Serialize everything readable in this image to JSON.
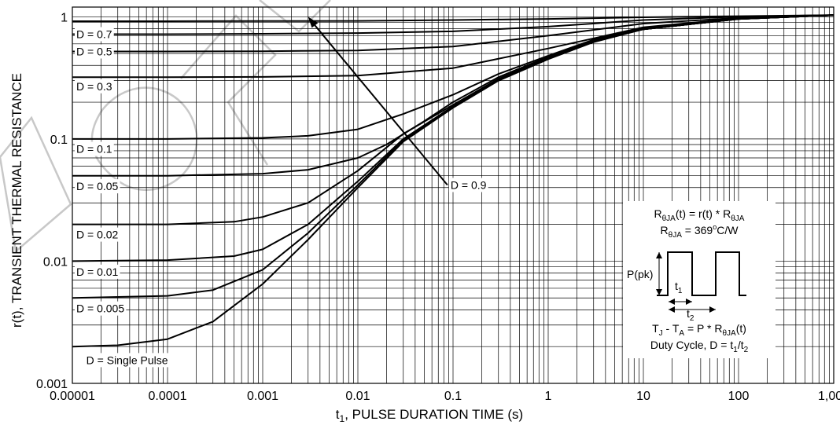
{
  "chart_data": {
    "type": "line",
    "title": "",
    "xlabel_main": "t",
    "xlabel_sub": "1",
    "xlabel_rest": ", PULSE DURATION TIME (s)",
    "ylabel": "r(t), TRANSIENT THERMAL RESISTANCE",
    "xscale": "log",
    "yscale": "log",
    "xlim": [
      1e-05,
      1000
    ],
    "ylim": [
      0.001,
      1.2
    ],
    "grid": true,
    "x_ticks": [
      {
        "v": 1e-05,
        "label": "0.00001"
      },
      {
        "v": 0.0001,
        "label": "0.0001"
      },
      {
        "v": 0.001,
        "label": "0.001"
      },
      {
        "v": 0.01,
        "label": "0.01"
      },
      {
        "v": 0.1,
        "label": "0.1"
      },
      {
        "v": 1,
        "label": "1"
      },
      {
        "v": 10,
        "label": "10"
      },
      {
        "v": 100,
        "label": "100"
      },
      {
        "v": 1000,
        "label": "1,000"
      }
    ],
    "y_ticks": [
      {
        "v": 1,
        "label": "1"
      },
      {
        "v": 0.1,
        "label": "0.1"
      },
      {
        "v": 0.01,
        "label": "0.01"
      },
      {
        "v": 0.001,
        "label": "0.001"
      }
    ],
    "series": [
      {
        "name": "D = 0.7",
        "label_at": [
          1.1e-05,
          0.72
        ],
        "points": [
          [
            1e-05,
            0.72
          ],
          [
            0.0001,
            0.72
          ],
          [
            0.001,
            0.725
          ],
          [
            0.01,
            0.735
          ],
          [
            0.1,
            0.76
          ],
          [
            1,
            0.83
          ],
          [
            10,
            0.94
          ],
          [
            100,
            1.0
          ],
          [
            1000,
            1.03
          ]
        ]
      },
      {
        "name": "D = 0.5",
        "label_at": [
          1.1e-05,
          0.52
        ],
        "points": [
          [
            1e-05,
            0.52
          ],
          [
            0.0001,
            0.52
          ],
          [
            0.001,
            0.522
          ],
          [
            0.01,
            0.53
          ],
          [
            0.1,
            0.57
          ],
          [
            1,
            0.7
          ],
          [
            10,
            0.88
          ],
          [
            100,
            0.98
          ],
          [
            1000,
            1.03
          ]
        ]
      },
      {
        "name": "D = 0.3",
        "label_at": [
          1.1e-05,
          0.27
        ],
        "points": [
          [
            1e-05,
            0.32
          ],
          [
            0.0001,
            0.32
          ],
          [
            0.001,
            0.322
          ],
          [
            0.01,
            0.33
          ],
          [
            0.1,
            0.38
          ],
          [
            1,
            0.55
          ],
          [
            10,
            0.82
          ],
          [
            100,
            0.97
          ],
          [
            1000,
            1.03
          ]
        ]
      },
      {
        "name": "D = 0.1",
        "label_at": [
          1.1e-05,
          0.083
        ],
        "points": [
          [
            1e-05,
            0.1
          ],
          [
            0.0001,
            0.1
          ],
          [
            0.001,
            0.102
          ],
          [
            0.003,
            0.106
          ],
          [
            0.01,
            0.12
          ],
          [
            0.03,
            0.16
          ],
          [
            0.1,
            0.23
          ],
          [
            0.3,
            0.34
          ],
          [
            1,
            0.48
          ],
          [
            3,
            0.65
          ],
          [
            10,
            0.8
          ],
          [
            100,
            0.96
          ],
          [
            1000,
            1.03
          ]
        ]
      },
      {
        "name": "D = 0.05",
        "label_at": [
          1.1e-05,
          0.041
        ],
        "points": [
          [
            1e-05,
            0.05
          ],
          [
            0.0001,
            0.05
          ],
          [
            0.001,
            0.052
          ],
          [
            0.003,
            0.056
          ],
          [
            0.01,
            0.07
          ],
          [
            0.02,
            0.09
          ],
          [
            0.05,
            0.14
          ],
          [
            0.1,
            0.2
          ],
          [
            0.3,
            0.32
          ],
          [
            1,
            0.47
          ],
          [
            3,
            0.64
          ],
          [
            10,
            0.79
          ],
          [
            100,
            0.96
          ],
          [
            1000,
            1.03
          ]
        ]
      },
      {
        "name": "D = 0.02",
        "label_at": [
          1.1e-05,
          0.0165
        ],
        "points": [
          [
            1e-05,
            0.02
          ],
          [
            0.0001,
            0.02
          ],
          [
            0.0005,
            0.021
          ],
          [
            0.001,
            0.023
          ],
          [
            0.003,
            0.03
          ],
          [
            0.01,
            0.055
          ],
          [
            0.03,
            0.11
          ],
          [
            0.1,
            0.19
          ],
          [
            0.3,
            0.31
          ],
          [
            1,
            0.46
          ],
          [
            3,
            0.63
          ],
          [
            10,
            0.79
          ],
          [
            100,
            0.96
          ],
          [
            1000,
            1.03
          ]
        ]
      },
      {
        "name": "D = 0.01",
        "label_at": [
          1.1e-05,
          0.0082
        ],
        "points": [
          [
            1e-05,
            0.01
          ],
          [
            0.0001,
            0.0102
          ],
          [
            0.0005,
            0.011
          ],
          [
            0.001,
            0.0125
          ],
          [
            0.003,
            0.02
          ],
          [
            0.01,
            0.045
          ],
          [
            0.03,
            0.1
          ],
          [
            0.1,
            0.185
          ],
          [
            0.3,
            0.305
          ],
          [
            1,
            0.455
          ],
          [
            3,
            0.63
          ],
          [
            10,
            0.79
          ],
          [
            100,
            0.96
          ],
          [
            1000,
            1.03
          ]
        ]
      },
      {
        "name": "D = 0.005",
        "label_at": [
          1.1e-05,
          0.0041
        ],
        "points": [
          [
            1e-05,
            0.005
          ],
          [
            0.0001,
            0.0052
          ],
          [
            0.0003,
            0.0058
          ],
          [
            0.001,
            0.0085
          ],
          [
            0.003,
            0.017
          ],
          [
            0.01,
            0.042
          ],
          [
            0.03,
            0.098
          ],
          [
            0.1,
            0.183
          ],
          [
            0.3,
            0.302
          ],
          [
            1,
            0.452
          ],
          [
            3,
            0.625
          ],
          [
            10,
            0.79
          ],
          [
            100,
            0.96
          ],
          [
            1000,
            1.03
          ]
        ]
      },
      {
        "name": "D = Single Pulse",
        "label_at": [
          1.4e-05,
          0.00155
        ],
        "points": [
          [
            1e-05,
            0.002
          ],
          [
            3e-05,
            0.00205
          ],
          [
            0.0001,
            0.0023
          ],
          [
            0.0003,
            0.0032
          ],
          [
            0.001,
            0.0065
          ],
          [
            0.003,
            0.015
          ],
          [
            0.01,
            0.04
          ],
          [
            0.03,
            0.095
          ],
          [
            0.1,
            0.18
          ],
          [
            0.3,
            0.3
          ],
          [
            1,
            0.45
          ],
          [
            3,
            0.62
          ],
          [
            10,
            0.79
          ],
          [
            100,
            0.96
          ],
          [
            1000,
            1.03
          ]
        ]
      },
      {
        "name": "D = 0.9",
        "points": [
          [
            1e-05,
            0.92
          ],
          [
            0.0001,
            0.92
          ],
          [
            0.001,
            0.922
          ],
          [
            0.01,
            0.925
          ],
          [
            0.1,
            0.94
          ],
          [
            1,
            0.96
          ],
          [
            10,
            0.99
          ],
          [
            100,
            1.01
          ],
          [
            1000,
            1.03
          ]
        ]
      }
    ],
    "annotation": {
      "text": "D = 0.9",
      "x": 0.075,
      "y": 0.042,
      "arrow_to": [
        0.003,
        1.0
      ]
    },
    "inset": {
      "eq1_a": "R",
      "eq1_b": "θJA",
      "eq1_c": "(t) = r(t) * R",
      "eq1_d": "θJA",
      "eq2_a": "R",
      "eq2_b": "θJA",
      "eq2_c": " = 369",
      "eq2_d": "o",
      "eq2_e": "C/W",
      "ppk": "P(pk)",
      "t1_a": "t",
      "t1_b": "1",
      "t2_a": "t",
      "t2_b": "2",
      "eq3_a": "T",
      "eq3_b": "J",
      "eq3_c": " - T",
      "eq3_d": "A",
      "eq3_e": " = P * R",
      "eq3_f": "θJA",
      "eq3_g": "(t)",
      "duty_a": "Duty Cycle, D = t",
      "duty_b": "1",
      "duty_c": "/t",
      "duty_d": "2"
    }
  }
}
